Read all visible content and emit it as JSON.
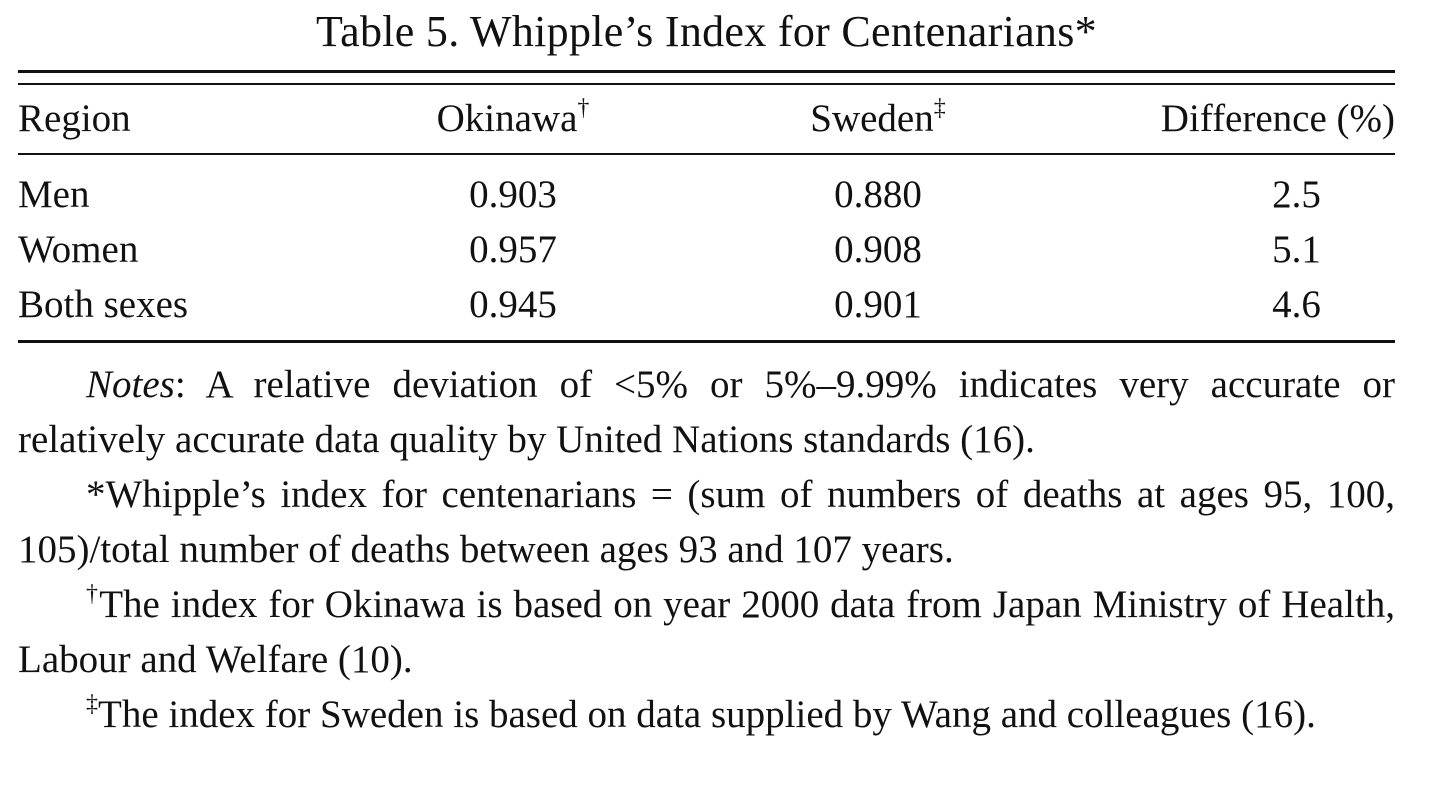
{
  "caption": "Table 5.  Whipple’s Index for Centenarians*",
  "table": {
    "headers": {
      "region": "Region",
      "okinawa": "Okinawa",
      "okinawa_mark": "†",
      "sweden": "Sweden",
      "sweden_mark": "‡",
      "difference": "Difference (%)"
    },
    "rows": [
      {
        "region": "Men",
        "okinawa": "0.903",
        "sweden": "0.880",
        "difference": "2.5"
      },
      {
        "region": "Women",
        "okinawa": "0.957",
        "sweden": "0.908",
        "difference": "5.1"
      },
      {
        "region": "Both sexes",
        "okinawa": "0.945",
        "sweden": "0.901",
        "difference": "4.6"
      }
    ]
  },
  "notes": {
    "label": "Notes",
    "main": ": A relative deviation of <5% or 5%–9.99% indicates very accurate or relatively accurate data quality by United Nations standards (16).",
    "star": "*Whipple’s index for centenarians = (sum of numbers of deaths at ages 95, 100, 105)/total number of deaths between ages 93 and 107 years.",
    "dagger_mark": "†",
    "dagger": "The index for Okinawa is based on year 2000 data from Japan Ministry of Health, Labour and Welfare (10).",
    "ddagger_mark": "‡",
    "ddagger": "The index for Sweden is based on data supplied by Wang and colleagues (16)."
  }
}
